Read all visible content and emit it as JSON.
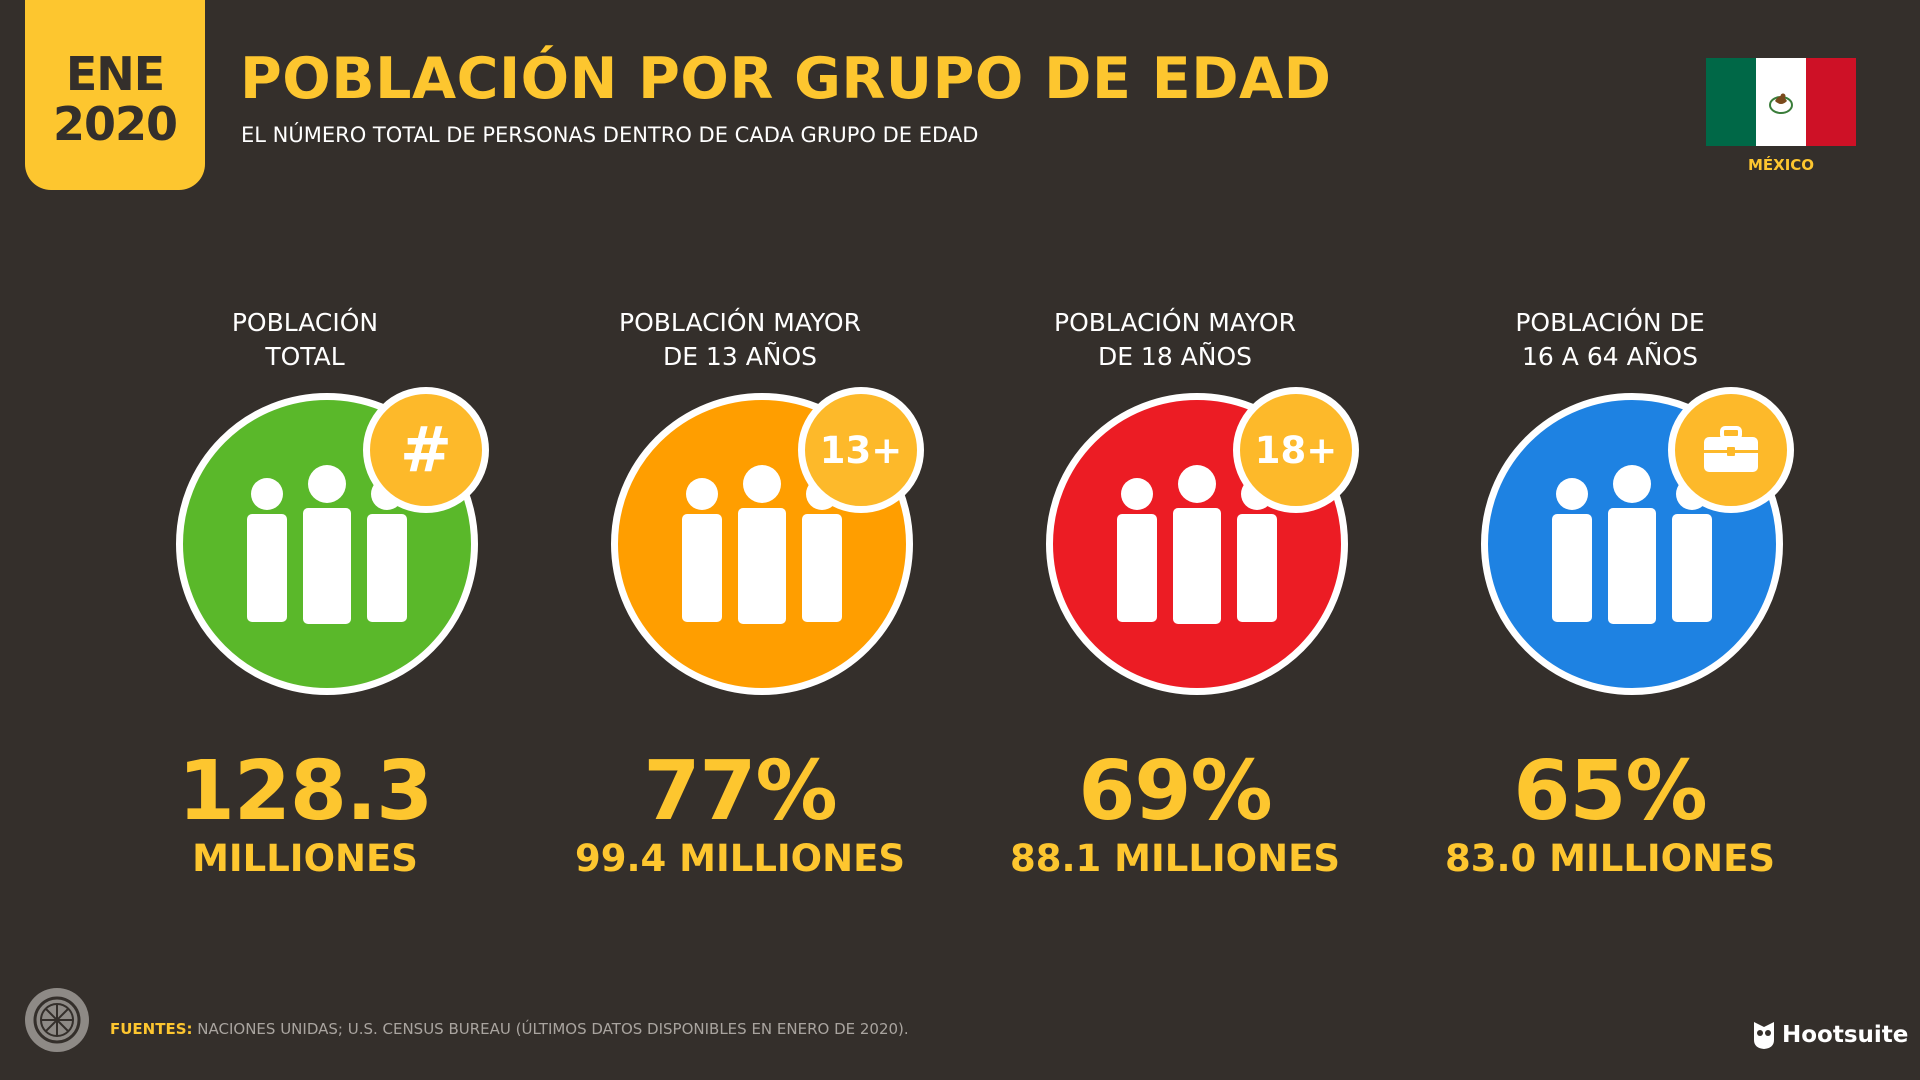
{
  "date_badge": {
    "month": "ENE",
    "year": "2020"
  },
  "header": {
    "title": "POBLACIÓN POR GRUPO DE EDAD",
    "subtitle": "EL NÚMERO TOTAL DE PERSONAS DENTRO DE CADA GRUPO DE EDAD"
  },
  "country": {
    "name": "MÉXICO",
    "flag_icon": "mexico-flag-icon"
  },
  "cards": [
    {
      "label_line1": "POBLACIÓN",
      "label_line2": "TOTAL",
      "badge_text": "#",
      "badge_icon": "hash-icon",
      "value": "128.3",
      "subvalue": "MILLIONES",
      "color": "#5ab82a"
    },
    {
      "label_line1": "POBLACIÓN MAYOR",
      "label_line2": "DE 13 AÑOS",
      "badge_text": "13+",
      "value": "77%",
      "subvalue": "99.4 MILLIONES",
      "color": "#ff9e00"
    },
    {
      "label_line1": "POBLACIÓN MAYOR",
      "label_line2": "DE 18 AÑOS",
      "badge_text": "18+",
      "value": "69%",
      "subvalue": "88.1 MILLIONES",
      "color": "#ec1c24"
    },
    {
      "label_line1": "POBLACIÓN DE",
      "label_line2": "16 A 64 AÑOS",
      "badge_text": "",
      "badge_icon": "briefcase-icon",
      "value": "65%",
      "subvalue": "83.0 MILLIONES",
      "color": "#1e82e2"
    }
  ],
  "footer": {
    "sources_key": "FUENTES:",
    "sources_text": " NACIONES UNIDAS; U.S. CENSUS BUREAU (ÚLTIMOS DATOS DISPONIBLES EN ENERO DE 2020).",
    "brand": "Hootsuite"
  },
  "colors": {
    "background": "#342f2b",
    "accent": "#fdc62f",
    "badge": "#fdb92a"
  }
}
